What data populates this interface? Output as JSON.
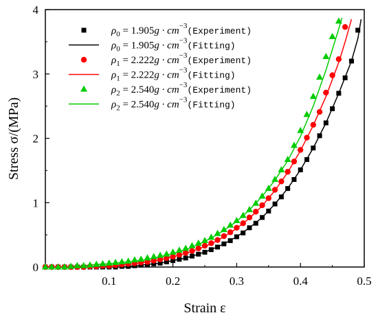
{
  "chart_data": {
    "type": "scatter",
    "title": "",
    "xlabel": "Strain  ε",
    "ylabel": "Stress σ/(MPa)",
    "xlim": [
      0,
      0.5
    ],
    "ylim": [
      0,
      4
    ],
    "x_ticks": [
      "0.1",
      "0.2",
      "0.3",
      "0.4",
      "0.5"
    ],
    "y_ticks": [
      "0",
      "1",
      "2",
      "3",
      "4"
    ],
    "grid": false,
    "legend_position": "top-left",
    "series": [
      {
        "name": "ρ0 = 1.905g·cm−3 (Experiment)",
        "kind": "markers",
        "marker": "square",
        "color": "#000000",
        "x": [
          0.0,
          0.01,
          0.02,
          0.03,
          0.04,
          0.05,
          0.06,
          0.07,
          0.08,
          0.09,
          0.1,
          0.11,
          0.12,
          0.13,
          0.14,
          0.15,
          0.16,
          0.17,
          0.18,
          0.19,
          0.2,
          0.21,
          0.22,
          0.23,
          0.24,
          0.25,
          0.26,
          0.27,
          0.28,
          0.29,
          0.3,
          0.31,
          0.32,
          0.33,
          0.34,
          0.35,
          0.36,
          0.37,
          0.38,
          0.39,
          0.4,
          0.41,
          0.42,
          0.43,
          0.44,
          0.45,
          0.46,
          0.47,
          0.48,
          0.49
        ],
        "y": [
          0.0,
          0.0,
          0.0,
          0.0,
          0.0,
          0.0,
          0.0,
          0.0,
          0.0,
          0.0,
          0.0,
          0.0,
          0.01,
          0.01,
          0.02,
          0.03,
          0.04,
          0.05,
          0.06,
          0.08,
          0.1,
          0.12,
          0.14,
          0.17,
          0.2,
          0.23,
          0.27,
          0.31,
          0.36,
          0.41,
          0.47,
          0.53,
          0.61,
          0.68,
          0.77,
          0.87,
          0.98,
          1.09,
          1.22,
          1.36,
          1.51,
          1.67,
          1.85,
          2.04,
          2.24,
          2.46,
          2.7,
          2.94,
          3.2,
          3.68
        ]
      },
      {
        "name": "ρ0 = 1.905g·cm−3 (Fitting)",
        "kind": "line",
        "color": "#000000",
        "x": [
          0.12,
          0.14,
          0.16,
          0.18,
          0.2,
          0.22,
          0.24,
          0.26,
          0.28,
          0.3,
          0.32,
          0.34,
          0.36,
          0.38,
          0.4,
          0.42,
          0.44,
          0.46,
          0.48,
          0.49,
          0.495
        ],
        "y": [
          0.0,
          0.02,
          0.04,
          0.06,
          0.1,
          0.14,
          0.2,
          0.27,
          0.36,
          0.47,
          0.61,
          0.77,
          0.98,
          1.22,
          1.51,
          1.85,
          2.24,
          2.7,
          3.2,
          3.55,
          3.85
        ]
      },
      {
        "name": "ρ1 = 2.222g·cm−3 (Experiment)",
        "kind": "markers",
        "marker": "circle",
        "color": "#ff0000",
        "x": [
          0.0,
          0.01,
          0.02,
          0.03,
          0.04,
          0.05,
          0.06,
          0.07,
          0.08,
          0.09,
          0.1,
          0.11,
          0.12,
          0.13,
          0.14,
          0.15,
          0.16,
          0.17,
          0.18,
          0.19,
          0.2,
          0.21,
          0.22,
          0.23,
          0.24,
          0.25,
          0.26,
          0.27,
          0.28,
          0.29,
          0.3,
          0.31,
          0.32,
          0.33,
          0.34,
          0.35,
          0.36,
          0.37,
          0.38,
          0.39,
          0.4,
          0.41,
          0.42,
          0.43,
          0.44,
          0.45,
          0.46,
          0.47
        ],
        "y": [
          0.0,
          0.0,
          0.0,
          0.0,
          0.0,
          0.0,
          0.0,
          0.01,
          0.01,
          0.02,
          0.02,
          0.03,
          0.04,
          0.05,
          0.06,
          0.07,
          0.08,
          0.1,
          0.12,
          0.14,
          0.16,
          0.19,
          0.22,
          0.25,
          0.29,
          0.33,
          0.37,
          0.42,
          0.48,
          0.54,
          0.61,
          0.68,
          0.77,
          0.86,
          0.96,
          1.07,
          1.2,
          1.33,
          1.48,
          1.64,
          1.82,
          2.01,
          2.21,
          2.41,
          2.71,
          2.98,
          3.23,
          3.73
        ]
      },
      {
        "name": "ρ1 = 2.222g·cm−3 (Fitting)",
        "kind": "line",
        "color": "#ff0000",
        "x": [
          0.1,
          0.12,
          0.14,
          0.16,
          0.18,
          0.2,
          0.22,
          0.24,
          0.26,
          0.28,
          0.3,
          0.32,
          0.34,
          0.36,
          0.38,
          0.4,
          0.42,
          0.44,
          0.46,
          0.47,
          0.48
        ],
        "y": [
          0.0,
          0.03,
          0.05,
          0.08,
          0.11,
          0.16,
          0.21,
          0.28,
          0.36,
          0.47,
          0.6,
          0.76,
          0.95,
          1.19,
          1.47,
          1.81,
          2.2,
          2.65,
          3.18,
          3.5,
          3.85
        ]
      },
      {
        "name": "ρ2 = 2.540g·cm−3 (Experiment)",
        "kind": "markers",
        "marker": "triangle",
        "color": "#00cc00",
        "x": [
          0.0,
          0.01,
          0.02,
          0.03,
          0.04,
          0.05,
          0.06,
          0.07,
          0.08,
          0.09,
          0.1,
          0.11,
          0.12,
          0.13,
          0.14,
          0.15,
          0.16,
          0.17,
          0.18,
          0.19,
          0.2,
          0.21,
          0.22,
          0.23,
          0.24,
          0.25,
          0.26,
          0.27,
          0.28,
          0.29,
          0.3,
          0.31,
          0.32,
          0.33,
          0.34,
          0.35,
          0.36,
          0.37,
          0.38,
          0.39,
          0.4,
          0.41,
          0.42,
          0.43,
          0.44,
          0.45,
          0.46
        ],
        "y": [
          0.0,
          0.0,
          0.0,
          0.0,
          0.01,
          0.02,
          0.02,
          0.03,
          0.04,
          0.05,
          0.06,
          0.07,
          0.08,
          0.09,
          0.11,
          0.12,
          0.14,
          0.16,
          0.18,
          0.2,
          0.23,
          0.26,
          0.29,
          0.33,
          0.37,
          0.41,
          0.46,
          0.52,
          0.58,
          0.65,
          0.72,
          0.8,
          0.89,
          0.99,
          1.1,
          1.22,
          1.36,
          1.51,
          1.67,
          1.89,
          2.12,
          2.37,
          2.65,
          2.95,
          3.27,
          3.58,
          3.82
        ]
      },
      {
        "name": "ρ2 = 2.540g·cm−3 (Fitting)",
        "kind": "line",
        "color": "#00cc00",
        "x": [
          0.02,
          0.04,
          0.06,
          0.08,
          0.1,
          0.12,
          0.14,
          0.16,
          0.18,
          0.2,
          0.22,
          0.24,
          0.26,
          0.28,
          0.3,
          0.32,
          0.34,
          0.36,
          0.38,
          0.4,
          0.42,
          0.44,
          0.46,
          0.465
        ],
        "y": [
          0.0,
          0.01,
          0.02,
          0.04,
          0.05,
          0.07,
          0.09,
          0.12,
          0.16,
          0.21,
          0.27,
          0.35,
          0.45,
          0.57,
          0.71,
          0.89,
          1.1,
          1.35,
          1.65,
          2.03,
          2.5,
          3.06,
          3.7,
          3.87
        ]
      }
    ]
  },
  "legend": [
    {
      "sym": "ρ",
      "sub": "0",
      "eq": " = 1.905",
      "unit": "g · cm",
      "sup": "−3",
      "note": "(Experiment)"
    },
    {
      "sym": "ρ",
      "sub": "0",
      "eq": " = 1.905",
      "unit": "g · cm",
      "sup": "−3",
      "note": "(Fitting)"
    },
    {
      "sym": "ρ",
      "sub": "1",
      "eq": " = 2.222",
      "unit": "g · cm",
      "sup": "−3",
      "note": "(Experiment)"
    },
    {
      "sym": "ρ",
      "sub": "1",
      "eq": " = 2.222",
      "unit": "g · cm",
      "sup": "−3",
      "note": "(Fitting)"
    },
    {
      "sym": "ρ",
      "sub": "2",
      "eq": " = 2.540",
      "unit": "g · cm",
      "sup": "−3",
      "note": "(Experiment)"
    },
    {
      "sym": "ρ",
      "sub": "2",
      "eq": " = 2.540",
      "unit": "g · cm",
      "sup": "−3",
      "note": "(Fitting)"
    }
  ]
}
